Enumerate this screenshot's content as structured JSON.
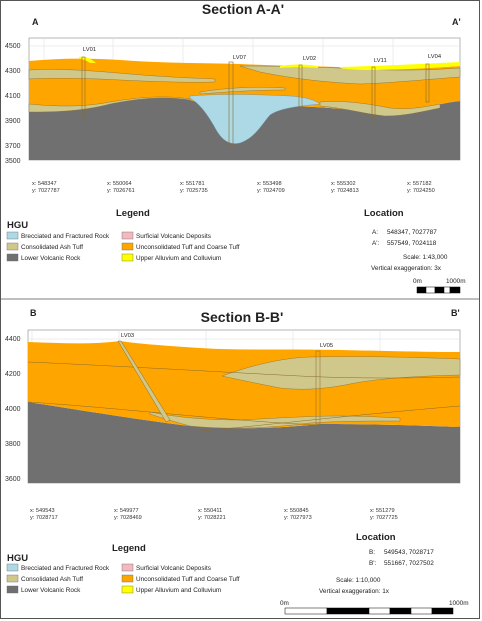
{
  "colors": {
    "upper_alluvium": "#ffff00",
    "unconsolidated_tuff": "#ffa500",
    "consolidated_ash_tuff": "#cfc88a",
    "brecciated_rock": "#add8e6",
    "lower_volcanic": "#707070",
    "surficial_volcanic": "#f4b9c0",
    "line": "#8a6b2e"
  },
  "section_a": {
    "title": "Section A-A'",
    "start_label": "A",
    "end_label": "A'",
    "y_ticks": [
      "4500",
      "4300",
      "4100",
      "3900",
      "3700",
      "3500"
    ],
    "wells": [
      "LV01",
      "LV07",
      "LV02",
      "LV11",
      "LV04"
    ],
    "coords": [
      {
        "x": "x: 548347",
        "y": "y: 7027787"
      },
      {
        "x": "x: 550064",
        "y": "y: 7026761"
      },
      {
        "x": "x: 551781",
        "y": "y: 7025735"
      },
      {
        "x": "x: 553498",
        "y": "y: 7024709"
      },
      {
        "x": "x: 555302",
        "y": "y: 7024813"
      },
      {
        "x": "x: 557182",
        "y": "y: 7024250"
      }
    ],
    "legend": {
      "title": "Legend",
      "hgu_label": "HGU",
      "items": [
        {
          "label": "Brecciated and Fractured Rock",
          "color": "#add8e6"
        },
        {
          "label": "Surficial Volcanic Deposits",
          "color": "#f4b9c0"
        },
        {
          "label": "Consolidated Ash Tuff",
          "color": "#cfc88a"
        },
        {
          "label": "Unconsolidated Tuff and Coarse Tuff",
          "color": "#ffa500"
        },
        {
          "label": "Lower Volcanic Rock",
          "color": "#707070"
        },
        {
          "label": "Upper Alluvium and Colluvium",
          "color": "#ffff00"
        }
      ]
    },
    "location": {
      "title": "Location",
      "a_label": "A:",
      "a_value": "548347, 7027787",
      "b_label": "A':",
      "b_value": "557549, 7024118",
      "scale": "Scale: 1:43,000",
      "exaggeration": "Vertical exaggeration: 3x",
      "bar_start": "0m",
      "bar_end": "1000m"
    }
  },
  "section_b": {
    "title": "Section B-B'",
    "start_label": "B",
    "end_label": "B'",
    "y_ticks": [
      "4400",
      "4200",
      "4000",
      "3800",
      "3600"
    ],
    "wells": [
      "LV03",
      "LV05"
    ],
    "coords": [
      {
        "x": "x: 549543",
        "y": "y: 7028717"
      },
      {
        "x": "x: 549977",
        "y": "y: 7028469"
      },
      {
        "x": "x: 550411",
        "y": "y: 7028221"
      },
      {
        "x": "x: 550845",
        "y": "y: 7027973"
      },
      {
        "x": "x: 551279",
        "y": "y: 7027725"
      }
    ],
    "legend": {
      "title": "Legend",
      "hgu_label": "HGU",
      "items": [
        {
          "label": "Brecciated and Fractured Rock",
          "color": "#add8e6"
        },
        {
          "label": "Surficial Volcanic Deposits",
          "color": "#f4b9c0"
        },
        {
          "label": "Consolidated Ash Tuff",
          "color": "#cfc88a"
        },
        {
          "label": "Unconsolidated Tuff and Coarse Tuff",
          "color": "#ffa500"
        },
        {
          "label": "Lower Volcanic Rock",
          "color": "#707070"
        },
        {
          "label": "Upper Alluvium and Colluvium",
          "color": "#ffff00"
        }
      ]
    },
    "location": {
      "title": "Location",
      "a_label": "B:",
      "a_value": "549543, 7028717",
      "b_label": "B':",
      "b_value": "551667, 7027502",
      "scale": "Scale: 1:10,000",
      "exaggeration": "Vertical exaggeration: 1x",
      "bar_start": "0m",
      "bar_end": "1000m"
    }
  }
}
